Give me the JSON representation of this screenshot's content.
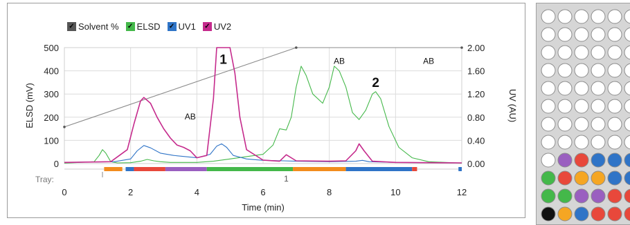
{
  "legend": {
    "solvent": {
      "label": "Solvent %",
      "color": "#555555"
    },
    "elsd": {
      "label": "ELSD",
      "color": "#44b84a"
    },
    "uv1": {
      "label": "UV1",
      "color": "#2f74c7"
    },
    "uv2": {
      "label": "UV2",
      "color": "#c52a8c"
    }
  },
  "chart_data": {
    "type": "line",
    "xlabel": "Time (min)",
    "ylabel_left": "ELSD (mV)",
    "ylabel_right": "UV (AU)",
    "xlim": [
      0,
      12
    ],
    "ylim_left": [
      0,
      500
    ],
    "ylim_right": [
      0,
      2.0
    ],
    "x_ticks": [
      "0",
      "2",
      "4",
      "6",
      "8",
      "10",
      "12"
    ],
    "y_left_ticks": [
      "0",
      "100",
      "200",
      "300",
      "400",
      "500"
    ],
    "y_right_ticks": [
      "0.00",
      "0.40",
      "0.80",
      "1.20",
      "1.60",
      "2.00"
    ],
    "grid": true,
    "series": [
      {
        "name": "Solvent %",
        "color": "#8a8a8a",
        "axis": "left",
        "x": [
          0,
          7.0,
          12.0
        ],
        "y": [
          158,
          500,
          500
        ]
      },
      {
        "name": "ELSD",
        "color": "#44b84a",
        "axis": "left",
        "x": [
          0,
          0.9,
          1.05,
          1.15,
          1.25,
          1.4,
          1.6,
          2.0,
          2.3,
          2.5,
          2.7,
          2.9,
          3.2,
          4.0,
          4.5,
          5.0,
          5.5,
          6.0,
          6.3,
          6.5,
          6.7,
          6.85,
          7.0,
          7.15,
          7.3,
          7.5,
          7.8,
          8.0,
          8.15,
          8.3,
          8.5,
          8.7,
          8.9,
          9.1,
          9.3,
          9.4,
          9.55,
          9.8,
          10.1,
          10.5,
          11.0,
          12.0
        ],
        "y": [
          2,
          8,
          35,
          60,
          45,
          8,
          3,
          4,
          10,
          18,
          12,
          8,
          5,
          5,
          10,
          20,
          30,
          40,
          80,
          150,
          145,
          200,
          330,
          420,
          380,
          300,
          260,
          330,
          420,
          400,
          330,
          220,
          190,
          230,
          300,
          310,
          280,
          160,
          70,
          25,
          8,
          2
        ]
      },
      {
        "name": "UV1",
        "color": "#2f74c7",
        "axis": "left",
        "x": [
          0,
          1.5,
          2.0,
          2.2,
          2.4,
          2.6,
          2.9,
          3.3,
          4.0,
          4.4,
          4.6,
          4.75,
          4.9,
          5.1,
          5.5,
          6.0,
          6.6,
          7.0,
          8.0,
          8.8,
          9.0,
          9.2,
          10.0,
          12.0
        ],
        "y": [
          5,
          8,
          20,
          55,
          78,
          68,
          45,
          35,
          25,
          40,
          75,
          85,
          70,
          35,
          20,
          14,
          12,
          10,
          8,
          10,
          14,
          8,
          5,
          3
        ]
      },
      {
        "name": "UV2",
        "color": "#c52a8c",
        "axis": "left",
        "x": [
          0,
          1.4,
          1.9,
          2.1,
          2.3,
          2.4,
          2.6,
          2.8,
          3.0,
          3.2,
          3.4,
          3.6,
          3.8,
          4.0,
          4.3,
          4.5,
          4.6,
          4.8,
          5.0,
          5.15,
          5.3,
          5.5,
          6.0,
          6.5,
          6.7,
          7.0,
          8.0,
          8.5,
          8.8,
          8.9,
          9.05,
          9.3,
          10.0,
          12.0
        ],
        "y": [
          5,
          8,
          60,
          170,
          270,
          285,
          260,
          200,
          150,
          110,
          80,
          70,
          55,
          25,
          35,
          280,
          500,
          500,
          500,
          390,
          200,
          60,
          15,
          10,
          38,
          12,
          10,
          12,
          55,
          85,
          55,
          10,
          5,
          3
        ]
      }
    ],
    "annotations": [
      {
        "text": "AB",
        "x": 3.8,
        "y": 190
      },
      {
        "text": "AB",
        "x": 8.3,
        "y": 430
      },
      {
        "text": "AB",
        "x": 11.0,
        "y": 430
      },
      {
        "text": "1",
        "x": 4.8,
        "y": 430
      },
      {
        "text": "2",
        "x": 9.4,
        "y": 330
      }
    ],
    "tray": {
      "label": "Tray:",
      "marker_label": "1",
      "marker_x": 6.7,
      "segments": [
        {
          "x0": 1.2,
          "x1": 1.75,
          "color": "#f28c1e"
        },
        {
          "x0": 1.85,
          "x1": 2.1,
          "color": "#2f74c7"
        },
        {
          "x0": 2.1,
          "x1": 3.05,
          "color": "#e8483b"
        },
        {
          "x0": 3.05,
          "x1": 4.3,
          "color": "#9a5fc0"
        },
        {
          "x0": 4.3,
          "x1": 6.9,
          "color": "#44b84a"
        },
        {
          "x0": 6.9,
          "x1": 8.5,
          "color": "#f28c1e"
        },
        {
          "x0": 8.5,
          "x1": 10.5,
          "color": "#2f74c7"
        },
        {
          "x0": 10.5,
          "x1": 10.65,
          "color": "#e8483b"
        },
        {
          "x0": 11.9,
          "x1": 12.0,
          "color": "#2f74c7"
        }
      ]
    }
  },
  "plate": {
    "rows": [
      [
        "#ffffff",
        "#ffffff",
        "#ffffff",
        "#ffffff",
        "#ffffff",
        "#ffffff"
      ],
      [
        "#ffffff",
        "#ffffff",
        "#ffffff",
        "#ffffff",
        "#ffffff",
        "#ffffff"
      ],
      [
        "#ffffff",
        "#ffffff",
        "#ffffff",
        "#ffffff",
        "#ffffff",
        "#ffffff"
      ],
      [
        "#ffffff",
        "#ffffff",
        "#ffffff",
        "#ffffff",
        "#ffffff",
        "#ffffff"
      ],
      [
        "#ffffff",
        "#ffffff",
        "#ffffff",
        "#ffffff",
        "#ffffff",
        "#ffffff"
      ],
      [
        "#ffffff",
        "#ffffff",
        "#ffffff",
        "#ffffff",
        "#ffffff",
        "#ffffff"
      ],
      [
        "#ffffff",
        "#ffffff",
        "#ffffff",
        "#ffffff",
        "#ffffff",
        "#ffffff"
      ],
      [
        "#ffffff",
        "#ffffff",
        "#ffffff",
        "#ffffff",
        "#ffffff",
        "#ffffff"
      ],
      [
        "#ffffff",
        "#9a5fc0",
        "#e8483b",
        "#2f74c7",
        "#2f74c7",
        "#2f74c7"
      ],
      [
        "#44b84a",
        "#e8483b",
        "#f5a623",
        "#f5a623",
        "#2f74c7",
        "#2f74c7"
      ],
      [
        "#44b84a",
        "#44b84a",
        "#9a5fc0",
        "#9a5fc0",
        "#e8483b",
        "#e8483b"
      ],
      [
        "#111111",
        "#f5a623",
        "#2f74c7",
        "#e8483b",
        "#e8483b",
        "#e8483b"
      ]
    ]
  }
}
